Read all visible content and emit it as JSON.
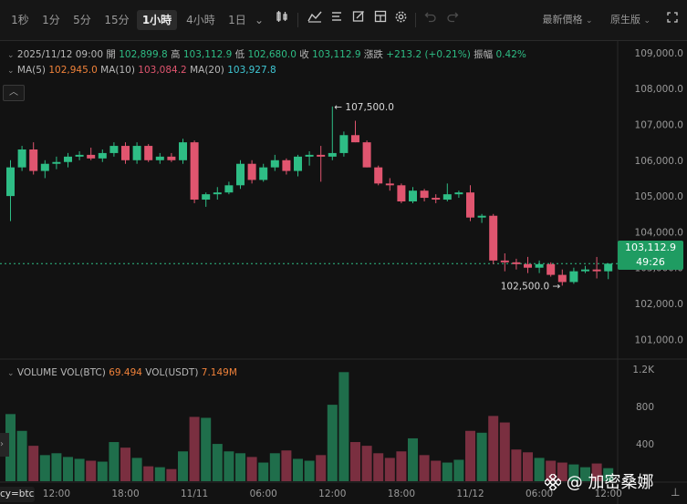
{
  "toolbar": {
    "intervals": [
      "1秒",
      "1分",
      "5分",
      "15分",
      "1小時",
      "4小時",
      "1日"
    ],
    "active_interval": "1小時",
    "more_caret": "⌄",
    "price_type": "最新價格",
    "view_mode": "原生版",
    "caret": "⌄"
  },
  "info": {
    "datetime": "2025/11/12 09:00",
    "open_label": "開",
    "open": "102,899.8",
    "high_label": "高",
    "high": "103,112.9",
    "low_label": "低",
    "low": "102,680.0",
    "close_label": "收",
    "close": "103,112.9",
    "change_label": "漲跌",
    "change": "+213.2 (+0.21%)",
    "amp_label": "振幅",
    "amp": "0.42%"
  },
  "ma": {
    "ma5_label": "MA(5)",
    "ma5": "102,945.0",
    "ma10_label": "MA(10)",
    "ma10": "103,084.2",
    "ma20_label": "MA(20)",
    "ma20": "103,927.8"
  },
  "volume_info": {
    "label": "VOLUME",
    "btc_label": "VOL(BTC)",
    "btc": "69.494",
    "usdt_label": "VOL(USDT)",
    "usdt": "7.149M"
  },
  "price_tag": {
    "price": "103,112.9",
    "countdown": "49:26"
  },
  "collapse_glyph": "︿",
  "corner_label": "cy=btc",
  "watermark": "@ 加密桑娜",
  "colors": {
    "up": "#2ebd85",
    "down": "#e0556f",
    "ma5": "#f0823a",
    "ma10": "#e0556f",
    "ma20": "#3fc7d4",
    "accent": "#1f9c62"
  },
  "chart_data": {
    "type": "candlestick",
    "price_axis": {
      "min": 100500,
      "max": 109200,
      "ticks": [
        "109,000.0",
        "108,000.0",
        "107,000.0",
        "106,000.0",
        "105,000.0",
        "104,000.0",
        "103,000.0",
        "102,000.0",
        "101,000.0"
      ],
      "tick_values": [
        109000,
        108000,
        107000,
        106000,
        105000,
        104000,
        103000,
        102000,
        101000
      ]
    },
    "volume_axis": {
      "max": 1300,
      "ticks": [
        "1.2K",
        "800",
        "400"
      ],
      "tick_values": [
        1200,
        800,
        400
      ]
    },
    "x_axis": {
      "labels": [
        "12:00",
        "18:00",
        "11/11",
        "06:00",
        "12:00",
        "18:00",
        "11/12",
        "06:00",
        "12:00"
      ],
      "label_candle_index": [
        4,
        10,
        16,
        22,
        28,
        34,
        40,
        46,
        52
      ]
    },
    "annotations": {
      "high": "107,500.0",
      "low": "102,500.0"
    },
    "last_price": 103112.9,
    "candles": [
      {
        "o": 105000,
        "h": 106000,
        "l": 104300,
        "c": 105800,
        "v": 720
      },
      {
        "o": 105800,
        "h": 106400,
        "l": 105700,
        "c": 106300,
        "v": 540
      },
      {
        "o": 106300,
        "h": 106500,
        "l": 105600,
        "c": 105700,
        "v": 380
      },
      {
        "o": 105700,
        "h": 106000,
        "l": 105500,
        "c": 105900,
        "v": 280
      },
      {
        "o": 105900,
        "h": 106100,
        "l": 105750,
        "c": 105950,
        "v": 300
      },
      {
        "o": 105950,
        "h": 106200,
        "l": 105800,
        "c": 106100,
        "v": 260
      },
      {
        "o": 106100,
        "h": 106250,
        "l": 106000,
        "c": 106150,
        "v": 240
      },
      {
        "o": 106150,
        "h": 106350,
        "l": 106000,
        "c": 106050,
        "v": 220
      },
      {
        "o": 106050,
        "h": 106300,
        "l": 105950,
        "c": 106200,
        "v": 210
      },
      {
        "o": 106200,
        "h": 106500,
        "l": 106100,
        "c": 106400,
        "v": 420
      },
      {
        "o": 106400,
        "h": 106500,
        "l": 105900,
        "c": 106000,
        "v": 360
      },
      {
        "o": 106000,
        "h": 106500,
        "l": 105900,
        "c": 106400,
        "v": 250
      },
      {
        "o": 106400,
        "h": 106450,
        "l": 105950,
        "c": 106000,
        "v": 160
      },
      {
        "o": 106000,
        "h": 106200,
        "l": 105900,
        "c": 106100,
        "v": 150
      },
      {
        "o": 106100,
        "h": 106200,
        "l": 105950,
        "c": 106000,
        "v": 130
      },
      {
        "o": 106000,
        "h": 106600,
        "l": 105900,
        "c": 106500,
        "v": 320
      },
      {
        "o": 106500,
        "h": 106550,
        "l": 104800,
        "c": 104900,
        "v": 690
      },
      {
        "o": 104900,
        "h": 105100,
        "l": 104700,
        "c": 105050,
        "v": 680
      },
      {
        "o": 105050,
        "h": 105250,
        "l": 104900,
        "c": 105100,
        "v": 400
      },
      {
        "o": 105100,
        "h": 105400,
        "l": 105050,
        "c": 105300,
        "v": 320
      },
      {
        "o": 105300,
        "h": 106000,
        "l": 105200,
        "c": 105900,
        "v": 300
      },
      {
        "o": 105900,
        "h": 106000,
        "l": 105350,
        "c": 105450,
        "v": 260
      },
      {
        "o": 105450,
        "h": 105900,
        "l": 105400,
        "c": 105800,
        "v": 200
      },
      {
        "o": 105800,
        "h": 106150,
        "l": 105700,
        "c": 106000,
        "v": 300
      },
      {
        "o": 106000,
        "h": 106050,
        "l": 105600,
        "c": 105700,
        "v": 330
      },
      {
        "o": 105700,
        "h": 106150,
        "l": 105550,
        "c": 106100,
        "v": 240
      },
      {
        "o": 106100,
        "h": 106250,
        "l": 105850,
        "c": 106150,
        "v": 220
      },
      {
        "o": 106150,
        "h": 106400,
        "l": 105400,
        "c": 106100,
        "v": 280
      },
      {
        "o": 106100,
        "h": 107500,
        "l": 106000,
        "c": 106200,
        "v": 820
      },
      {
        "o": 106200,
        "h": 106800,
        "l": 106100,
        "c": 106700,
        "v": 1170
      },
      {
        "o": 106700,
        "h": 107100,
        "l": 106500,
        "c": 106500,
        "v": 420
      },
      {
        "o": 106500,
        "h": 106550,
        "l": 105800,
        "c": 105800,
        "v": 380
      },
      {
        "o": 105800,
        "h": 105850,
        "l": 105300,
        "c": 105350,
        "v": 300
      },
      {
        "o": 105350,
        "h": 105500,
        "l": 105150,
        "c": 105300,
        "v": 250
      },
      {
        "o": 105300,
        "h": 105350,
        "l": 104800,
        "c": 104850,
        "v": 320
      },
      {
        "o": 104850,
        "h": 105250,
        "l": 104800,
        "c": 105150,
        "v": 460
      },
      {
        "o": 105150,
        "h": 105200,
        "l": 104850,
        "c": 104950,
        "v": 280
      },
      {
        "o": 104950,
        "h": 105050,
        "l": 104800,
        "c": 104900,
        "v": 220
      },
      {
        "o": 104900,
        "h": 105350,
        "l": 104850,
        "c": 105050,
        "v": 200
      },
      {
        "o": 105050,
        "h": 105150,
        "l": 104950,
        "c": 105100,
        "v": 230
      },
      {
        "o": 105100,
        "h": 105300,
        "l": 104300,
        "c": 104400,
        "v": 540
      },
      {
        "o": 104400,
        "h": 104500,
        "l": 104250,
        "c": 104450,
        "v": 520
      },
      {
        "o": 104450,
        "h": 104500,
        "l": 103100,
        "c": 103200,
        "v": 700
      },
      {
        "o": 103200,
        "h": 103400,
        "l": 102900,
        "c": 103150,
        "v": 630
      },
      {
        "o": 103150,
        "h": 103250,
        "l": 102950,
        "c": 103100,
        "v": 340
      },
      {
        "o": 103100,
        "h": 103300,
        "l": 102850,
        "c": 103000,
        "v": 310
      },
      {
        "o": 103000,
        "h": 103200,
        "l": 102850,
        "c": 103100,
        "v": 250
      },
      {
        "o": 103100,
        "h": 103150,
        "l": 102750,
        "c": 102800,
        "v": 220
      },
      {
        "o": 102800,
        "h": 102950,
        "l": 102500,
        "c": 102600,
        "v": 200
      },
      {
        "o": 102600,
        "h": 103000,
        "l": 102550,
        "c": 102900,
        "v": 180
      },
      {
        "o": 102900,
        "h": 103050,
        "l": 102850,
        "c": 102950,
        "v": 150
      },
      {
        "o": 102950,
        "h": 103300,
        "l": 102700,
        "c": 102900,
        "v": 190
      },
      {
        "o": 102900,
        "h": 103112.9,
        "l": 102680,
        "c": 103112.9,
        "v": 140
      }
    ]
  }
}
